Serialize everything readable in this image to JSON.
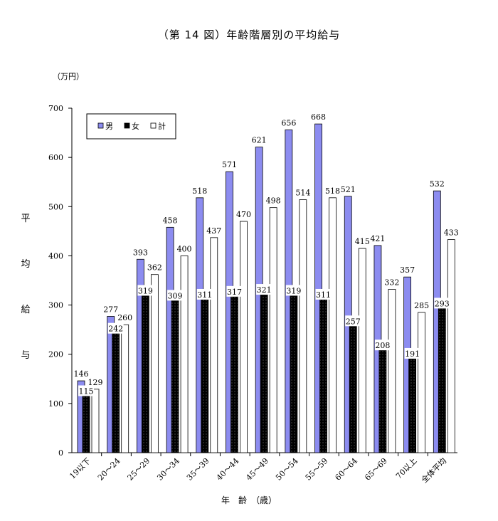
{
  "chart_data": {
    "type": "bar",
    "title": "（第 14 図）年齢階層別の平均給与",
    "unit": "（万円）",
    "ylabel": "平均給与",
    "xlabel": "年　齢　（歳）",
    "ylim": [
      0,
      700
    ],
    "yticks": [
      0,
      100,
      200,
      300,
      400,
      500,
      600,
      700
    ],
    "grid": false,
    "legend_position": "top-left",
    "categories": [
      "19以下",
      "20～24",
      "25～29",
      "30～34",
      "35～39",
      "40～44",
      "45～49",
      "50～54",
      "55～59",
      "60～64",
      "65～69",
      "70以上",
      "全体平均"
    ],
    "series": [
      {
        "name": "男",
        "color": "#8c8cf0",
        "values": [
          146,
          277,
          393,
          458,
          518,
          571,
          621,
          656,
          668,
          521,
          421,
          357,
          532
        ]
      },
      {
        "name": "女",
        "color": "#000000",
        "values": [
          115,
          242,
          319,
          309,
          311,
          317,
          321,
          319,
          311,
          257,
          208,
          191,
          293
        ]
      },
      {
        "name": "計",
        "color": "#ffffff",
        "values": [
          129,
          260,
          362,
          400,
          437,
          470,
          498,
          514,
          518,
          415,
          332,
          285,
          433
        ]
      }
    ]
  }
}
